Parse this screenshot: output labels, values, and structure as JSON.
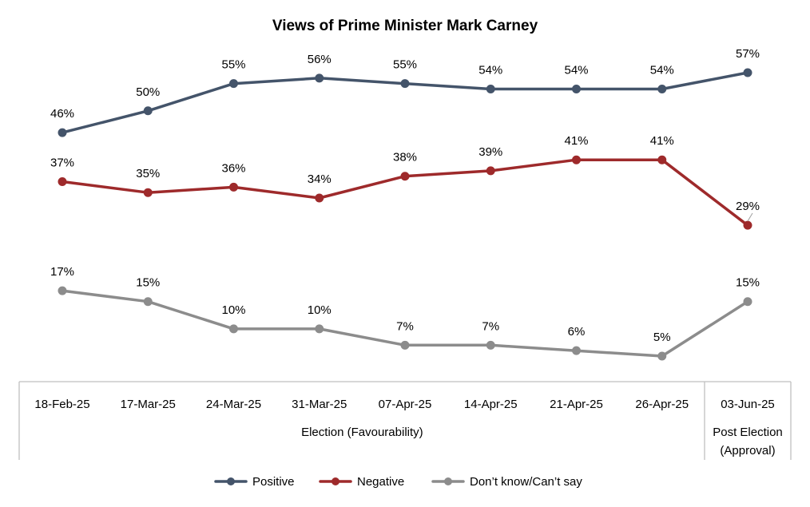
{
  "chart_data": {
    "type": "line",
    "title": "Views of Prime Minister Mark Carney",
    "categories": [
      "18-Feb-25",
      "17-Mar-25",
      "24-Mar-25",
      "31-Mar-25",
      "07-Apr-25",
      "14-Apr-25",
      "21-Apr-25",
      "26-Apr-25",
      "03-Jun-25"
    ],
    "category_groups": [
      {
        "label": "Election (Favourability)",
        "span": [
          0,
          7
        ]
      },
      {
        "label_lines": [
          "Post Election",
          "(Approval)"
        ],
        "span": [
          8,
          8
        ]
      }
    ],
    "series": [
      {
        "name": "Positive",
        "color": "#44546a",
        "values": [
          46,
          50,
          55,
          56,
          55,
          54,
          54,
          54,
          57
        ],
        "labels": [
          "46%",
          "50%",
          "55%",
          "56%",
          "55%",
          "54%",
          "54%",
          "54%",
          "57%"
        ]
      },
      {
        "name": "Negative",
        "color": "#9e2a2b",
        "values": [
          37,
          35,
          36,
          34,
          38,
          39,
          41,
          41,
          29
        ],
        "labels": [
          "37%",
          "35%",
          "36%",
          "34%",
          "38%",
          "39%",
          "41%",
          "41%",
          "29%"
        ]
      },
      {
        "name": "Don’t know/Can’t say",
        "color": "#8c8c8c",
        "values": [
          17,
          15,
          10,
          10,
          7,
          7,
          6,
          5,
          15
        ],
        "labels": [
          "17%",
          "15%",
          "10%",
          "10%",
          "7%",
          "7%",
          "6%",
          "5%",
          "15%"
        ]
      }
    ],
    "ylim": [
      0,
      60
    ],
    "grid": false,
    "legend_position": "bottom",
    "data_labels": "above"
  }
}
